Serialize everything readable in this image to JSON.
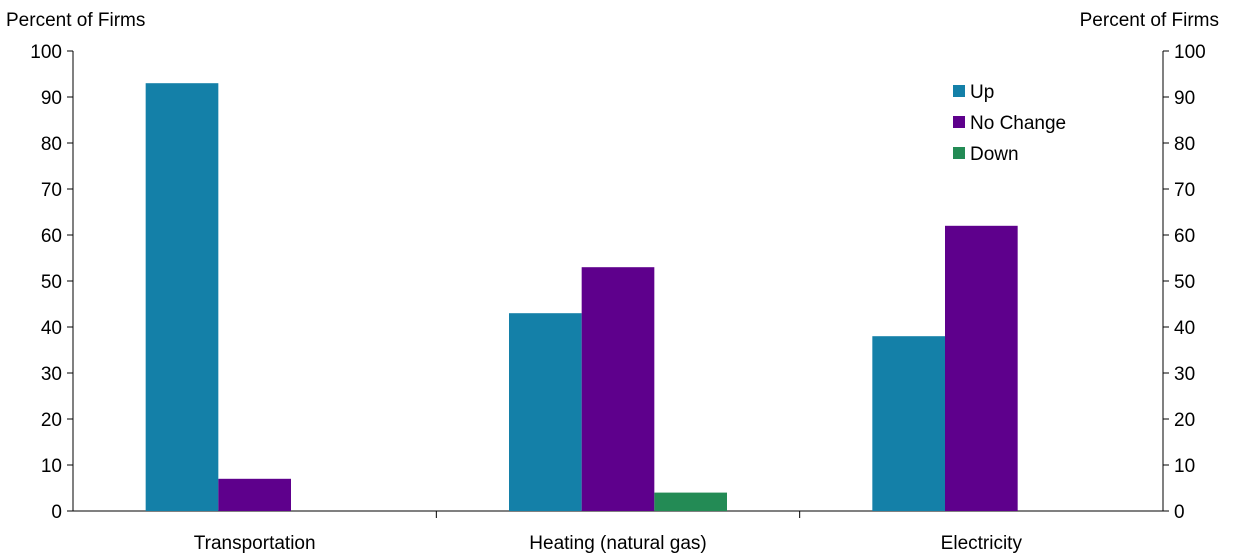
{
  "chart_data": {
    "type": "bar",
    "categories": [
      "Transportation",
      "Heating (natural gas)",
      "Electricity"
    ],
    "series": [
      {
        "name": "Up",
        "values": [
          93,
          43,
          38
        ],
        "color": "#1480A8"
      },
      {
        "name": "No Change",
        "values": [
          7,
          53,
          62
        ],
        "color": "#5E008C"
      },
      {
        "name": "Down",
        "values": [
          0,
          4,
          0
        ],
        "color": "#238B55"
      }
    ],
    "ylabel_left": "Percent of Firms",
    "ylabel_right": "Percent of Firms",
    "ylim": [
      0,
      100
    ],
    "yticks": [
      0,
      10,
      20,
      30,
      40,
      50,
      60,
      70,
      80,
      90,
      100
    ],
    "legend_position": "top-right",
    "grid": false
  }
}
